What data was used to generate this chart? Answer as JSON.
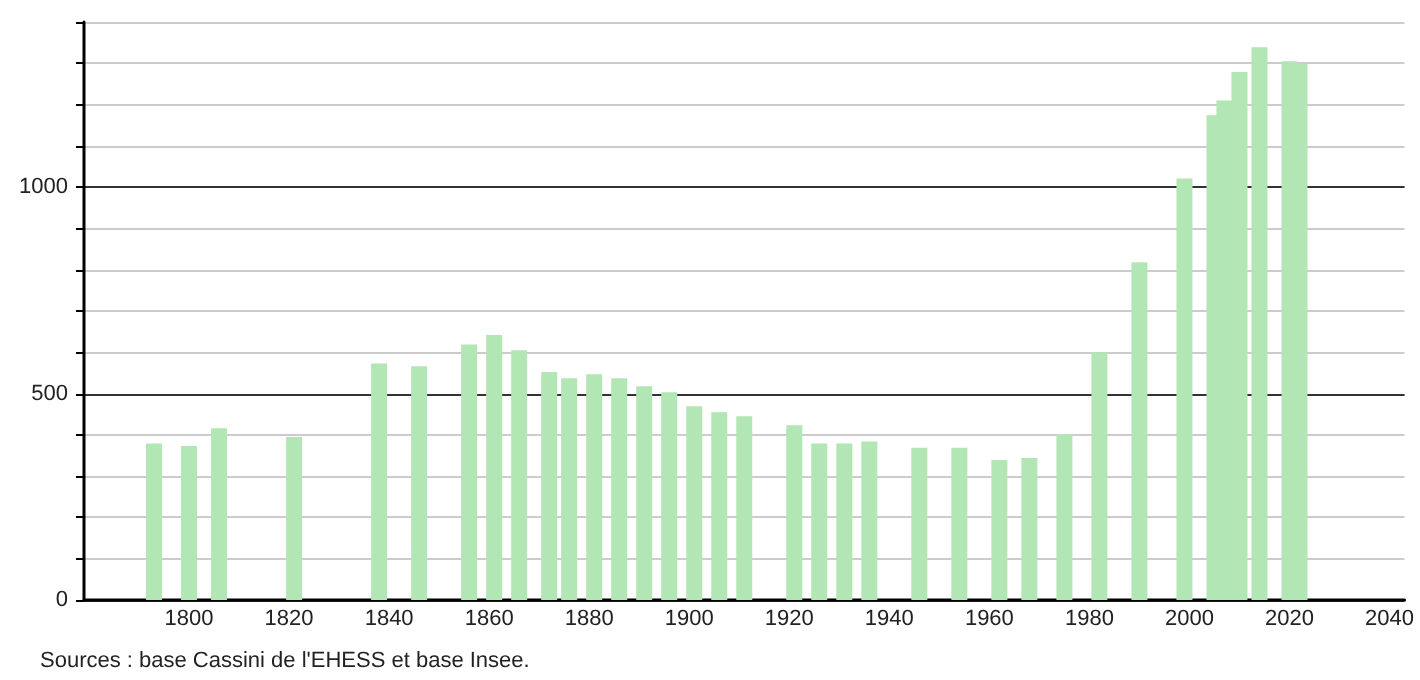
{
  "chart_data": {
    "type": "bar",
    "x": [
      1793,
      1800,
      1806,
      1821,
      1838,
      1846,
      1856,
      1861,
      1866,
      1872,
      1876,
      1881,
      1886,
      1891,
      1896,
      1901,
      1906,
      1911,
      1921,
      1926,
      1931,
      1936,
      1946,
      1954,
      1962,
      1968,
      1975,
      1982,
      1990,
      1999,
      2005,
      2007,
      2010,
      2014,
      2020,
      2022
    ],
    "values": [
      379,
      373,
      416,
      395,
      573,
      566,
      619,
      642,
      605,
      552,
      537,
      547,
      537,
      518,
      503,
      469,
      455,
      445,
      423,
      379,
      379,
      384,
      369,
      369,
      339,
      344,
      402,
      600,
      818,
      1021,
      1174,
      1210,
      1279,
      1339,
      1305,
      1298
    ],
    "color": "#b3e6b5",
    "xlim": [
      1779,
      2043
    ],
    "xticks": [
      1800,
      1820,
      1840,
      1860,
      1880,
      1900,
      1920,
      1940,
      1960,
      1980,
      2000,
      2020,
      2040
    ],
    "ylim": [
      0,
      1400
    ],
    "yticks": [
      0,
      {
        "value": 100,
        "label": null
      },
      {
        "value": 200,
        "label": null
      },
      {
        "value": 300,
        "label": null
      },
      {
        "value": 400,
        "label": null
      },
      500,
      {
        "value": 600,
        "label": null
      },
      {
        "value": 700,
        "label": null
      },
      {
        "value": 800,
        "label": null
      },
      {
        "value": 900,
        "label": null
      },
      1000,
      {
        "value": 1100,
        "label": null
      },
      {
        "value": 1200,
        "label": null
      },
      {
        "value": 1300,
        "label": null
      },
      {
        "value": 1400,
        "label": null
      }
    ],
    "grid": "y",
    "annotations": [
      "Sources : base Cassini de l'EHESS et base Insee."
    ]
  }
}
